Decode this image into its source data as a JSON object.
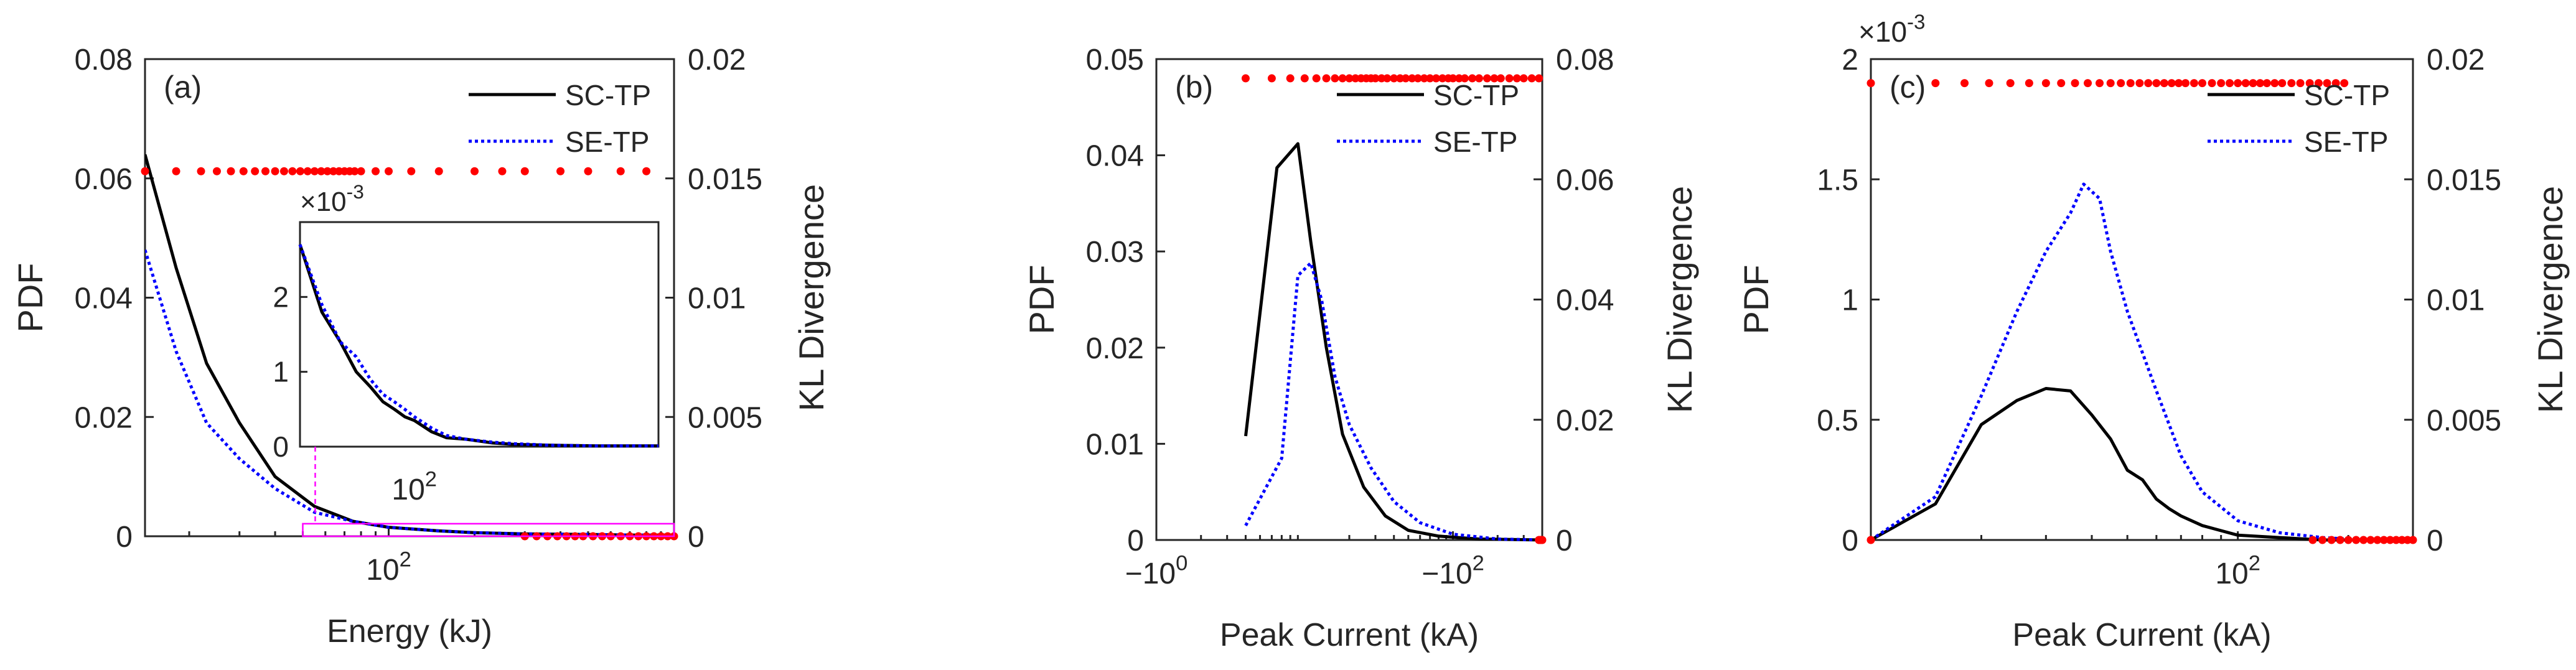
{
  "colors": {
    "sc": "#000000",
    "se": "#0000ff",
    "kl": "#ff0000",
    "zoom": "#ff00ff",
    "axis": "#262626"
  },
  "chart_data": [
    {
      "type": "line",
      "panel_label": "(a)",
      "title": "",
      "xlabel": "Energy (kJ)",
      "ylabel": "PDF",
      "y2label": "KL Divergence",
      "xscale": "log",
      "xlim": [
        14,
        1000
      ],
      "ylim": [
        0,
        0.08
      ],
      "y2lim": [
        0,
        0.02
      ],
      "xticks": [
        100
      ],
      "xtick_labels": [
        "10^2"
      ],
      "yticks": [
        0,
        0.02,
        0.04,
        0.06,
        0.08
      ],
      "ytick_labels": [
        "0",
        "0.02",
        "0.04",
        "0.06",
        "0.08"
      ],
      "y2ticks": [
        0,
        0.005,
        0.01,
        0.015,
        0.02
      ],
      "y2tick_labels": [
        "0",
        "0.005",
        "0.01",
        "0.015",
        "0.02"
      ],
      "legend": [
        "SC-TP",
        "SE-TP"
      ],
      "legend_position": "top-right",
      "series": [
        {
          "name": "SC-TP",
          "style": "solid",
          "x": [
            14,
            18,
            23,
            30,
            40,
            55,
            75,
            100,
            150,
            200,
            300,
            500,
            700,
            1000
          ],
          "y": [
            0.064,
            0.045,
            0.029,
            0.019,
            0.01,
            0.005,
            0.0025,
            0.0015,
            0.0009,
            0.0006,
            0.0004,
            0.0003,
            0.0002,
            0.0002
          ]
        },
        {
          "name": "SE-TP",
          "style": "dotted",
          "x": [
            14,
            18,
            23,
            30,
            40,
            55,
            75,
            100,
            150,
            200,
            300,
            500,
            700,
            1000
          ],
          "y": [
            0.048,
            0.031,
            0.019,
            0.013,
            0.008,
            0.004,
            0.0025,
            0.0015,
            0.0009,
            0.0006,
            0.0004,
            0.0003,
            0.0002,
            0.0002
          ]
        },
        {
          "name": "KL Divergence",
          "style": "markers",
          "axis": "right",
          "x": [
            14,
            18,
            22,
            25,
            28,
            31,
            34,
            37,
            40,
            43,
            46,
            49,
            52,
            55,
            58,
            61,
            64,
            67,
            70,
            73,
            76,
            80,
            90,
            100,
            120,
            150,
            200,
            250,
            300,
            400,
            500,
            650,
            800
          ],
          "y": [
            0.0153,
            0.0153,
            0.0153,
            0.0153,
            0.0153,
            0.0153,
            0.0153,
            0.0153,
            0.0153,
            0.0153,
            0.0153,
            0.0153,
            0.0153,
            0.0153,
            0.0153,
            0.0153,
            0.0153,
            0.0153,
            0.0153,
            0.0153,
            0.0153,
            0.0153,
            0.0153,
            0.0153,
            0.0153,
            0.0153,
            0.0153,
            0.0153,
            0.0153,
            0.0153,
            0.0153,
            0.0153,
            0.0153
          ]
        },
        {
          "name": "KL Divergence (low)",
          "style": "markers",
          "axis": "right",
          "x": [
            300,
            330,
            360,
            390,
            420,
            450,
            480,
            520,
            560,
            600,
            650,
            700,
            750,
            800,
            850,
            900,
            950,
            1000
          ],
          "y": [
            0,
            0,
            0,
            0,
            0,
            0,
            0,
            0,
            0,
            0,
            0,
            0,
            0,
            0,
            0,
            0,
            0,
            0
          ]
        }
      ],
      "inset": {
        "xscale": "log",
        "xlim": [
          50,
          1000
        ],
        "ylim": [
          0,
          0.003
        ],
        "exponent_label": "×10^-3",
        "yticks": [
          0,
          0.001,
          0.002
        ],
        "ytick_labels": [
          "0",
          "1",
          "2"
        ],
        "xtick_label": "10^2",
        "series": [
          {
            "name": "SC-TP",
            "style": "solid",
            "x": [
              50,
              60,
              70,
              80,
              90,
              100,
              110,
              120,
              130,
              150,
              170,
              200,
              250,
              300,
              400,
              600,
              1000
            ],
            "y": [
              0.0027,
              0.0018,
              0.0014,
              0.001,
              0.0008,
              0.0006,
              0.0005,
              0.0004,
              0.00035,
              0.0002,
              0.00012,
              0.0001,
              5e-05,
              3e-05,
              2e-05,
              1e-05,
              1e-05
            ]
          },
          {
            "name": "SE-TP",
            "style": "dotted",
            "x": [
              50,
              60,
              70,
              80,
              90,
              100,
              110,
              120,
              130,
              150,
              170,
              200,
              250,
              300,
              400,
              600,
              1000
            ],
            "y": [
              0.0027,
              0.0019,
              0.0014,
              0.0012,
              0.0009,
              0.0007,
              0.0006,
              0.0005,
              0.0004,
              0.00025,
              0.00015,
              0.0001,
              6e-05,
              4e-05,
              2e-05,
              1e-05,
              1e-05
            ]
          }
        ]
      }
    },
    {
      "type": "line",
      "panel_label": "(b)",
      "title": "",
      "xlabel": "Peak Current (kA)",
      "ylabel": "PDF",
      "y2label": "KL Divergence",
      "xscale": "log",
      "xlim": [
        1,
        400
      ],
      "ylim": [
        0,
        0.05
      ],
      "y2lim": [
        0,
        0.08
      ],
      "xticks": [
        1,
        100
      ],
      "xtick_labels": [
        "−10^0",
        "−10^2"
      ],
      "yticks": [
        0,
        0.01,
        0.02,
        0.03,
        0.04,
        0.05
      ],
      "ytick_labels": [
        "0",
        "0.01",
        "0.02",
        "0.03",
        "0.04",
        "0.05"
      ],
      "y2ticks": [
        0,
        0.02,
        0.04,
        0.06,
        0.08
      ],
      "y2tick_labels": [
        "0",
        "0.02",
        "0.04",
        "0.06",
        "0.08"
      ],
      "legend": [
        "SC-TP",
        "SE-TP"
      ],
      "legend_position": "top-right",
      "series": [
        {
          "name": "SC-TP",
          "style": "solid",
          "x": [
            4,
            6.5,
            9,
            11,
            14,
            18,
            25,
            35,
            50,
            80,
            150,
            400
          ],
          "y": [
            0.0108,
            0.0387,
            0.0412,
            0.031,
            0.02,
            0.011,
            0.0055,
            0.0025,
            0.001,
            0.0004,
            0.0001,
            0
          ]
        },
        {
          "name": "SE-TP",
          "style": "dotted",
          "x": [
            4,
            7,
            9,
            11,
            13,
            16,
            20,
            28,
            40,
            60,
            100,
            200,
            400
          ],
          "y": [
            0.0015,
            0.0085,
            0.0275,
            0.0288,
            0.025,
            0.017,
            0.012,
            0.0075,
            0.004,
            0.0018,
            0.0006,
            0.0001,
            0
          ]
        },
        {
          "name": "KL Divergence",
          "style": "markers",
          "axis": "right",
          "x": [
            4,
            6,
            8,
            10,
            12,
            14,
            16,
            18,
            20,
            22,
            24,
            26,
            28,
            30,
            33,
            36,
            40,
            44,
            48,
            53,
            58,
            64,
            70,
            77,
            85,
            93,
            100,
            110,
            120,
            135,
            150,
            170,
            190,
            210,
            240,
            270,
            300,
            340,
            380
          ],
          "y": [
            0.0768,
            0.0768,
            0.0768,
            0.0768,
            0.0768,
            0.0768,
            0.0768,
            0.0768,
            0.0768,
            0.0768,
            0.0768,
            0.0768,
            0.0768,
            0.0768,
            0.0768,
            0.0768,
            0.0768,
            0.0768,
            0.0768,
            0.0768,
            0.0768,
            0.0768,
            0.0768,
            0.0768,
            0.0768,
            0.0768,
            0.0768,
            0.0768,
            0.0768,
            0.0768,
            0.0768,
            0.0768,
            0.0768,
            0.0768,
            0.0768,
            0.0768,
            0.0768,
            0.0768,
            0.0768
          ]
        },
        {
          "name": "KL Divergence (low)",
          "style": "markers",
          "axis": "right",
          "x": [
            380,
            390,
            400
          ],
          "y": [
            0,
            0,
            0
          ]
        }
      ]
    },
    {
      "type": "line",
      "panel_label": "(c)",
      "title": "",
      "xlabel": "Peak Current (kA)",
      "ylabel": "PDF",
      "y2label": "KL Divergence",
      "xscale": "log",
      "xlim": [
        10,
        300
      ],
      "ylim": [
        0,
        0.002
      ],
      "y2lim": [
        0,
        0.02
      ],
      "exponent_label": "×10^-3",
      "xticks": [
        100
      ],
      "xtick_labels": [
        "10^2"
      ],
      "yticks": [
        0,
        0.0005,
        0.001,
        0.0015,
        0.002
      ],
      "ytick_labels": [
        "0",
        "0.5",
        "1",
        "1.5",
        "2"
      ],
      "y2ticks": [
        0,
        0.005,
        0.01,
        0.015,
        0.02
      ],
      "y2tick_labels": [
        "0",
        "0.005",
        "0.01",
        "0.015",
        "0.02"
      ],
      "legend": [
        "SC-TP",
        "SE-TP"
      ],
      "legend_position": "top-right",
      "series": [
        {
          "name": "SC-TP",
          "style": "solid",
          "x": [
            10,
            15,
            20,
            25,
            30,
            35,
            40,
            45,
            50,
            55,
            60,
            65,
            70,
            80,
            100,
            130,
            170,
            220,
            300
          ],
          "y": [
            0,
            0.00015,
            0.00048,
            0.00058,
            0.00063,
            0.00062,
            0.00052,
            0.00042,
            0.00029,
            0.00025,
            0.00017,
            0.00013,
            0.0001,
            6e-05,
            2e-05,
            1e-05,
            0,
            0,
            0
          ]
        },
        {
          "name": "SE-TP",
          "style": "dotted",
          "x": [
            10,
            15,
            20,
            25,
            30,
            35,
            38,
            42,
            45,
            50,
            60,
            70,
            80,
            100,
            130,
            170,
            220,
            300
          ],
          "y": [
            0,
            0.00018,
            0.0006,
            0.00095,
            0.0012,
            0.00136,
            0.00148,
            0.00142,
            0.0012,
            0.00095,
            0.00062,
            0.00035,
            0.0002,
            8e-05,
            3e-05,
            1e-05,
            0,
            0
          ]
        },
        {
          "name": "KL Divergence",
          "style": "markers",
          "axis": "right",
          "x": [
            10,
            15,
            18,
            21,
            24,
            27,
            30,
            33,
            36,
            39,
            42,
            45,
            48,
            51,
            54,
            57,
            60,
            63,
            66,
            69,
            72,
            76,
            80,
            85,
            90,
            95,
            100,
            105,
            110,
            115,
            120,
            126,
            132,
            140,
            148,
            157,
            166,
            175,
            185,
            195
          ],
          "y": [
            0.019,
            0.019,
            0.019,
            0.019,
            0.019,
            0.019,
            0.019,
            0.019,
            0.019,
            0.019,
            0.019,
            0.019,
            0.019,
            0.019,
            0.019,
            0.019,
            0.019,
            0.019,
            0.019,
            0.019,
            0.019,
            0.019,
            0.019,
            0.019,
            0.019,
            0.019,
            0.019,
            0.019,
            0.019,
            0.019,
            0.019,
            0.019,
            0.019,
            0.019,
            0.019,
            0.019,
            0.019,
            0.019,
            0.019,
            0.019
          ]
        },
        {
          "name": "KL Divergence (low)",
          "style": "markers",
          "axis": "right",
          "x": [
            10,
            160,
            170,
            180,
            190,
            200,
            210,
            220,
            230,
            240,
            250,
            260,
            270,
            280,
            290,
            300
          ],
          "y": [
            0,
            0,
            0,
            0,
            0,
            0,
            0,
            0,
            0,
            0,
            0,
            0,
            0,
            0,
            0,
            0
          ]
        }
      ]
    }
  ]
}
